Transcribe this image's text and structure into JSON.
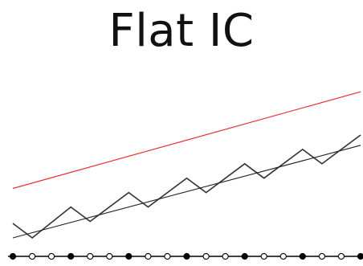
{
  "slide": {
    "title": "Flat IC"
  },
  "colors": {
    "upper_line": "#e83030",
    "zigzag": "#333333",
    "trend": "#222222",
    "axis": "#000000",
    "filled_marker": "#000000",
    "hollow_marker_fill": "#ffffff",
    "hollow_marker_stroke": "#000000"
  },
  "chart_data": {
    "type": "line",
    "title": "",
    "xlabel": "",
    "ylabel": "",
    "grid": false,
    "legend": "none",
    "xlim": [
      0,
      18
    ],
    "ylim": [
      0,
      10
    ],
    "series": [
      {
        "key": "upper",
        "color_key": "upper_line",
        "points": [
          [
            0,
            3.3
          ],
          [
            18,
            8.0
          ]
        ]
      },
      {
        "key": "zigzag",
        "color_key": "zigzag",
        "points": [
          [
            0,
            1.6
          ],
          [
            1,
            0.9
          ],
          [
            3,
            2.4
          ],
          [
            4,
            1.7
          ],
          [
            6,
            3.1
          ],
          [
            7,
            2.4
          ],
          [
            9,
            3.8
          ],
          [
            10,
            3.1
          ],
          [
            12,
            4.5
          ],
          [
            13,
            3.8
          ],
          [
            15,
            5.2
          ],
          [
            16,
            4.5
          ],
          [
            18,
            5.9
          ]
        ]
      },
      {
        "key": "trend",
        "color_key": "trend",
        "points": [
          [
            0,
            0.9
          ],
          [
            18,
            5.4
          ]
        ]
      }
    ],
    "markers": {
      "x": [
        0,
        1,
        2,
        3,
        4,
        5,
        6,
        7,
        8,
        9,
        10,
        11,
        12,
        13,
        14,
        15,
        16,
        17,
        18
      ],
      "filled": [
        true,
        false,
        false,
        true,
        false,
        false,
        true,
        false,
        false,
        true,
        false,
        false,
        true,
        false,
        false,
        true,
        false,
        false,
        true
      ]
    }
  }
}
